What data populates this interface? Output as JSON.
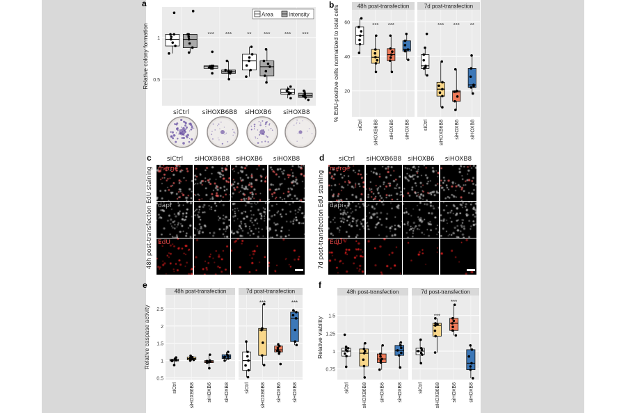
{
  "panel_labels": {
    "a": "a",
    "b": "b",
    "c": "c",
    "d": "d",
    "e": "e",
    "f": "f"
  },
  "colors": {
    "siCtrl": "#ffffff",
    "siHOXB6B8": "#f9d78a",
    "siHOXB6": "#ef7b5a",
    "siHOXB8": "#3d78b8",
    "intensity": "#a9a9a9",
    "panel_bg": "#ebebeb",
    "strip": "#d9d9d9"
  },
  "panel_c": {
    "side_label": "48h post-transfection EdU staining",
    "columns": [
      "siCtrl",
      "siHOXB6B8",
      "siHOXB6",
      "siHOXB8"
    ],
    "rows": [
      "merge",
      "dapi",
      "EdU"
    ]
  },
  "panel_d": {
    "side_label": "7d post-transfection EdU staining",
    "columns": [
      "siCtrl",
      "siHOXB6B8",
      "siHOXB6",
      "siHOXB8"
    ],
    "rows": [
      "merge",
      "dapi",
      "EdU"
    ]
  },
  "panel_a_images": {
    "dishes": [
      "siCtrl",
      "siHOXB6B8",
      "siHOXB6",
      "siHOXB8"
    ],
    "stain_density": [
      0.9,
      0.35,
      0.6,
      0.2
    ]
  },
  "chart_data": [
    {
      "panel": "a",
      "type": "box",
      "ylabel": "Relative colony formation",
      "yticks": [
        0.5,
        1
      ],
      "ylim": [
        0.18,
        1.37
      ],
      "grid": true,
      "x_labels": "horizontal",
      "legend": {
        "placement": "top-right",
        "entries": [
          {
            "name": "Area",
            "color": "#ffffff"
          },
          {
            "name": "Intensity",
            "color": "#a9a9a9"
          }
        ]
      },
      "facets": [
        {
          "title": "",
          "categories": [
            "siCtrl",
            "siHOXB6B8",
            "siHOXB6",
            "siHOXB8"
          ],
          "series": [
            {
              "name": "Area",
              "color": "#ffffff",
              "boxes": [
                {
                  "q1": 0.9,
                  "median": 0.98,
                  "q3": 1.04,
                  "lo": 0.81,
                  "hi": 1.04,
                  "outliers": [
                    1.3
                  ]
                },
                {
                  "q1": 0.63,
                  "median": 0.65,
                  "q3": 0.66,
                  "lo": 0.63,
                  "hi": 0.66,
                  "outliers": [
                    0.83,
                    0.57
                  ]
                },
                {
                  "q1": 0.61,
                  "median": 0.72,
                  "q3": 0.8,
                  "lo": 0.53,
                  "hi": 0.89,
                  "outliers": []
                },
                {
                  "q1": 0.32,
                  "median": 0.34,
                  "q3": 0.38,
                  "lo": 0.27,
                  "hi": 0.41,
                  "outliers": []
                }
              ]
            },
            {
              "name": "Intensity",
              "color": "#a9a9a9",
              "boxes": [
                {
                  "q1": 0.88,
                  "median": 0.98,
                  "q3": 1.04,
                  "lo": 0.82,
                  "hi": 1.04,
                  "outliers": [
                    1.32
                  ]
                },
                {
                  "q1": 0.57,
                  "median": 0.59,
                  "q3": 0.61,
                  "lo": 0.5,
                  "hi": 0.72,
                  "outliers": []
                },
                {
                  "q1": 0.54,
                  "median": 0.65,
                  "q3": 0.72,
                  "lo": 0.46,
                  "hi": 0.86,
                  "outliers": []
                },
                {
                  "q1": 0.28,
                  "median": 0.3,
                  "q3": 0.33,
                  "lo": 0.25,
                  "hi": 0.36,
                  "outliers": []
                }
              ]
            }
          ],
          "significance": [
            [
              "",
              ""
            ],
            [
              "***",
              "***"
            ],
            [
              "**",
              "***"
            ],
            [
              "***",
              "***"
            ]
          ],
          "significance_y": 1.05
        }
      ]
    },
    {
      "panel": "b",
      "type": "box",
      "ylabel": "% EdU-positive cells normalized to total cells",
      "yticks": [
        20,
        40,
        60
      ],
      "ylim": [
        5,
        67
      ],
      "grid": true,
      "x_labels": "vertical",
      "facets": [
        {
          "title": "48h post-transfection",
          "categories": [
            "siCtrl",
            "siHOXB6B8",
            "siHOXB6",
            "siHOXB8"
          ],
          "boxes": [
            {
              "q1": 47,
              "median": 52,
              "q3": 57,
              "lo": 42,
              "hi": 62,
              "outliers": []
            },
            {
              "q1": 36,
              "median": 39.5,
              "q3": 44,
              "lo": 31,
              "hi": 52,
              "outliers": []
            },
            {
              "q1": 37.5,
              "median": 41,
              "q3": 44.5,
              "lo": 31,
              "hi": 52,
              "outliers": []
            },
            {
              "q1": 43,
              "median": 44,
              "q3": 49,
              "lo": 38,
              "hi": 53,
              "outliers": []
            }
          ],
          "significance": [
            "",
            "***",
            "***",
            ""
          ],
          "significance_y": 58.5
        },
        {
          "title": "7d post-transfection",
          "categories": [
            "siCtrl",
            "siHOXB6B8",
            "siHOXB6",
            "siHOXB8"
          ],
          "boxes": [
            {
              "q1": 33,
              "median": 34.5,
              "q3": 41,
              "lo": 29,
              "hi": 45,
              "outliers": [
                53
              ]
            },
            {
              "q1": 17,
              "median": 21,
              "q3": 25,
              "lo": 10.5,
              "hi": 37,
              "outliers": []
            },
            {
              "q1": 14,
              "median": 19.5,
              "q3": 20,
              "lo": 9,
              "hi": 32.5,
              "outliers": []
            },
            {
              "q1": 22,
              "median": 23.5,
              "q3": 33,
              "lo": 18.5,
              "hi": 40.5,
              "outliers": []
            }
          ],
          "significance": [
            "",
            "***",
            "***",
            "**"
          ],
          "significance_y": 58.5
        }
      ]
    },
    {
      "panel": "e",
      "type": "box",
      "ylabel": "Relative caspase activity",
      "yticks": [
        0.5,
        1,
        1.5,
        2,
        2.5
      ],
      "ylim": [
        0.45,
        2.9
      ],
      "grid": true,
      "x_labels": "vertical",
      "facets": [
        {
          "title": "48h post-transfection",
          "categories": [
            "siCtrl",
            "siHOXB6B8",
            "siHOXB6",
            "siHOXB8"
          ],
          "boxes": [
            {
              "q1": 0.99,
              "median": 1.01,
              "q3": 1.04,
              "lo": 0.87,
              "hi": 1.09,
              "outliers": []
            },
            {
              "q1": 1.02,
              "median": 1.06,
              "q3": 1.1,
              "lo": 1.0,
              "hi": 1.14,
              "outliers": []
            },
            {
              "q1": 0.94,
              "median": 0.97,
              "q3": 1.0,
              "lo": 0.78,
              "hi": 1.17,
              "outliers": []
            },
            {
              "q1": 1.06,
              "median": 1.11,
              "q3": 1.17,
              "lo": 1.0,
              "hi": 1.25,
              "outliers": []
            }
          ],
          "significance": [
            "",
            "",
            "",
            ""
          ],
          "significance_y": 2.7
        },
        {
          "title": "7d post-transfection",
          "categories": [
            "siCtrl",
            "siHOXB6B8",
            "siHOXB6",
            "siHOXB8"
          ],
          "boxes": [
            {
              "q1": 0.72,
              "median": 1.0,
              "q3": 1.25,
              "lo": 0.52,
              "hi": 1.55,
              "outliers": []
            },
            {
              "q1": 1.15,
              "median": 1.88,
              "q3": 1.93,
              "lo": 0.87,
              "hi": 2.63,
              "outliers": []
            },
            {
              "q1": 1.25,
              "median": 1.31,
              "q3": 1.42,
              "lo": 1.2,
              "hi": 1.47,
              "outliers": [
                0.9
              ]
            },
            {
              "q1": 1.55,
              "median": 2.22,
              "q3": 2.4,
              "lo": 1.45,
              "hi": 2.45,
              "outliers": []
            }
          ],
          "significance": [
            "",
            "***",
            "",
            "***"
          ],
          "significance_y": 2.7
        }
      ]
    },
    {
      "panel": "f",
      "type": "box",
      "ylabel": "Relative viability",
      "yticks": [
        0.75,
        1,
        1.25,
        1.5
      ],
      "ytick_labels": [
        "0.75",
        "1",
        "1.25",
        "1.5"
      ],
      "ylim": [
        0.6,
        1.78
      ],
      "grid": true,
      "x_labels": "vertical",
      "facets": [
        {
          "title": "48h post-transfection",
          "categories": [
            "siCtrl",
            "siHOXB6B8",
            "siHOXB6",
            "siHOXB8"
          ],
          "boxes": [
            {
              "q1": 0.93,
              "median": 1.0,
              "q3": 1.04,
              "lo": 0.78,
              "hi": 1.06,
              "outliers": [
                1.23
              ]
            },
            {
              "q1": 0.79,
              "median": 0.97,
              "q3": 1.03,
              "lo": 0.63,
              "hi": 1.11,
              "outliers": []
            },
            {
              "q1": 0.84,
              "median": 0.89,
              "q3": 0.96,
              "lo": 0.74,
              "hi": 1.08,
              "outliers": []
            },
            {
              "q1": 0.94,
              "median": 1.01,
              "q3": 1.08,
              "lo": 0.77,
              "hi": 1.12,
              "outliers": []
            }
          ],
          "significance": [
            "",
            "",
            "",
            ""
          ],
          "significance_y": 1.5
        },
        {
          "title": "7d post-transfection",
          "categories": [
            "siCtrl",
            "siHOXB6B8",
            "siHOXB6",
            "siHOXB8"
          ],
          "boxes": [
            {
              "q1": 0.95,
              "median": 1.0,
              "q3": 1.04,
              "lo": 0.83,
              "hi": 1.16,
              "outliers": []
            },
            {
              "q1": 1.21,
              "median": 1.36,
              "q3": 1.39,
              "lo": 0.98,
              "hi": 1.46,
              "outliers": []
            },
            {
              "q1": 1.29,
              "median": 1.39,
              "q3": 1.46,
              "lo": 1.22,
              "hi": 1.65,
              "outliers": []
            },
            {
              "q1": 0.74,
              "median": 0.83,
              "q3": 1.02,
              "lo": 0.62,
              "hi": 1.08,
              "outliers": []
            }
          ],
          "significance": [
            "",
            "***",
            "***",
            ""
          ],
          "significance_y": [
            1.5,
            1.5,
            1.7,
            1.5
          ]
        }
      ]
    }
  ]
}
